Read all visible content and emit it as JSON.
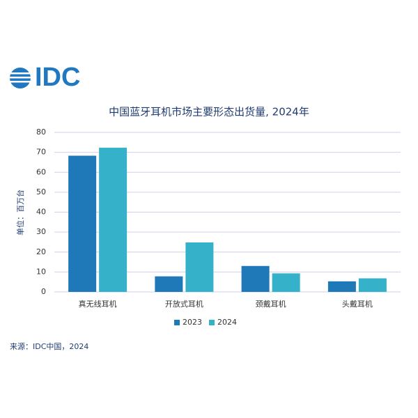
{
  "chart_data": {
    "type": "bar",
    "logo": "IDC",
    "title": "中国蓝牙耳机市场主要形态出货量, 2024年",
    "ylabel": "单位：百万台",
    "source": "来源：IDC中国，2024",
    "categories": [
      "真无线耳机",
      "开放式耳机",
      "颈戴耳机",
      "头戴耳机"
    ],
    "series": [
      {
        "name": "2023",
        "color": "#1f78b8",
        "values": [
          68.3,
          7.8,
          13,
          5.3
        ]
      },
      {
        "name": "2024",
        "color": "#35b1c9",
        "values": [
          72.3,
          24.8,
          9.3,
          6.8
        ]
      }
    ],
    "ylim": [
      0,
      80
    ],
    "yticks": [
      0,
      10,
      20,
      30,
      40,
      50,
      60,
      70,
      80
    ],
    "grid": true,
    "legend": "bottom"
  }
}
